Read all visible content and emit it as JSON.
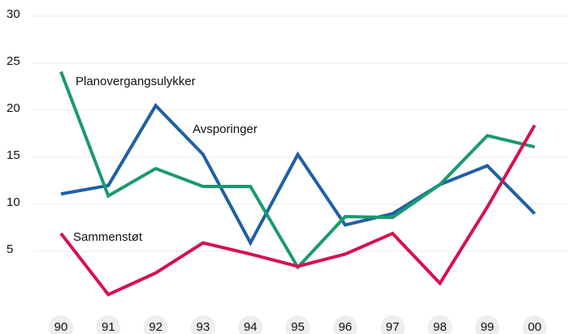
{
  "chart_data": {
    "type": "line",
    "categories": [
      "90",
      "91",
      "92",
      "93",
      "94",
      "95",
      "96",
      "97",
      "98",
      "99",
      "00"
    ],
    "series": [
      {
        "name": "Avsporinger",
        "color": "#1f5fa6",
        "values": [
          11.1,
          12.0,
          20.5,
          15.3,
          5.9,
          15.3,
          7.8,
          9.0,
          12.1,
          14.1,
          9.0
        ]
      },
      {
        "name": "Planovergangsulykker",
        "color": "#1a9a6e",
        "values": [
          24.1,
          10.9,
          13.8,
          11.9,
          11.9,
          3.3,
          8.7,
          8.6,
          12.1,
          17.3,
          16.1
        ]
      },
      {
        "name": "Sammenstøt",
        "color": "#d6114e",
        "values": [
          6.9,
          0.4,
          2.7,
          5.9,
          4.7,
          3.4,
          4.7,
          6.9,
          1.6,
          9.7,
          18.4
        ]
      }
    ],
    "ylim": [
      0,
      30
    ],
    "yticks": [
      5,
      10,
      15,
      20,
      25,
      30
    ],
    "grid": true
  }
}
